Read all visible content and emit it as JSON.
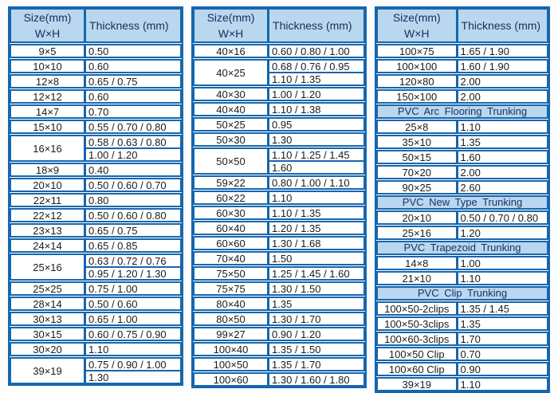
{
  "colors": {
    "border_blue": "#1566af",
    "header_background": "#b9d7ee",
    "header_text": "#1b3060",
    "data_text": "#1b1b1b",
    "row_background": "#ffffff"
  },
  "chart_data": {
    "type": "table",
    "column_headers": {
      "size_line1": "Size(mm)",
      "size_line2": "W×H",
      "thickness": "Thickness (mm)"
    },
    "tables": [
      {
        "name": "pvc-trunking-table-1",
        "rows": [
          {
            "size": "9×5",
            "thickness": [
              "0.50"
            ]
          },
          {
            "size": "10×10",
            "thickness": [
              "0.60"
            ]
          },
          {
            "size": "12×8",
            "thickness": [
              "0.65 / 0.75"
            ]
          },
          {
            "size": "12×12",
            "thickness": [
              "0.60"
            ]
          },
          {
            "size": "14×7",
            "thickness": [
              "0.70"
            ]
          },
          {
            "size": "15×10",
            "thickness": [
              "0.55 / 0.70 / 0.80"
            ]
          },
          {
            "size": "16×16",
            "thickness": [
              "0.58 / 0.63 / 0.80",
              "1.00 / 1.20"
            ]
          },
          {
            "size": "18×9",
            "thickness": [
              "0.40"
            ]
          },
          {
            "size": "20×10",
            "thickness": [
              "0.50 / 0.60 / 0.70"
            ]
          },
          {
            "size": "22×11",
            "thickness": [
              "0.80"
            ]
          },
          {
            "size": "22×12",
            "thickness": [
              "0.50 / 0.60 / 0.80"
            ]
          },
          {
            "size": "23×13",
            "thickness": [
              "0.65 / 0.75"
            ]
          },
          {
            "size": "24×14",
            "thickness": [
              "0.65 / 0.85"
            ]
          },
          {
            "size": "25×16",
            "thickness": [
              "0.63 / 0.72 / 0.76",
              "0.95 / 1.20 / 1.30"
            ]
          },
          {
            "size": "25×25",
            "thickness": [
              "0.75 / 1.00"
            ]
          },
          {
            "size": "28×14",
            "thickness": [
              "0.50 / 0.60"
            ]
          },
          {
            "size": "30×13",
            "thickness": [
              "0.65 / 1.00"
            ]
          },
          {
            "size": "30×15",
            "thickness": [
              "0.60 / 0.75 / 0.90"
            ]
          },
          {
            "size": "30×20",
            "thickness": [
              "1.10"
            ]
          },
          {
            "size": "39×19",
            "thickness": [
              "0.75 / 0.90 / 1.00",
              "1.30"
            ]
          }
        ]
      },
      {
        "name": "pvc-trunking-table-2",
        "rows": [
          {
            "size": "40×16",
            "thickness": [
              "0.60 / 0.80 / 1.00"
            ]
          },
          {
            "size": "40×25",
            "thickness": [
              "0.68 / 0.76 / 0.95",
              "1.10 / 1.35"
            ]
          },
          {
            "size": "40×30",
            "thickness": [
              "1.00 / 1.20"
            ]
          },
          {
            "size": "40×40",
            "thickness": [
              "1.10 / 1.38"
            ]
          },
          {
            "size": "50×25",
            "thickness": [
              "0.95"
            ]
          },
          {
            "size": "50×30",
            "thickness": [
              "1.30"
            ]
          },
          {
            "size": "50×50",
            "thickness": [
              "1.10 / 1.25 / 1.45",
              "1.60"
            ]
          },
          {
            "size": "59×22",
            "thickness": [
              "0.80 / 1.00 / 1.10"
            ]
          },
          {
            "size": "60×22",
            "thickness": [
              "1.10"
            ]
          },
          {
            "size": "60×30",
            "thickness": [
              "1.10 / 1.35"
            ]
          },
          {
            "size": "60×40",
            "thickness": [
              "1.20 / 1.35"
            ]
          },
          {
            "size": "60×60",
            "thickness": [
              "1.30 / 1.68"
            ]
          },
          {
            "size": "70×40",
            "thickness": [
              "1.50"
            ]
          },
          {
            "size": "75×50",
            "thickness": [
              "1.25 / 1.45 / 1.60"
            ]
          },
          {
            "size": "75×75",
            "thickness": [
              "1.30 / 1.50"
            ]
          },
          {
            "size": "80×40",
            "thickness": [
              "1.35"
            ]
          },
          {
            "size": "80×50",
            "thickness": [
              "1.30 / 1.70"
            ]
          },
          {
            "size": "99×27",
            "thickness": [
              "0.90 / 1.20"
            ]
          },
          {
            "size": "100×40",
            "thickness": [
              "1.35 / 1.50"
            ]
          },
          {
            "size": "100×50",
            "thickness": [
              "1.35 / 1.70"
            ]
          },
          {
            "size": "100×60",
            "thickness": [
              "1.30 / 1.60 / 1.80"
            ]
          }
        ]
      },
      {
        "name": "pvc-trunking-table-3",
        "rows": [
          {
            "size": "100×75",
            "thickness": [
              "1.65 / 1.90"
            ]
          },
          {
            "size": "100×100",
            "thickness": [
              "1.60 / 1.90"
            ]
          },
          {
            "size": "120×80",
            "thickness": [
              "2.00"
            ]
          },
          {
            "size": "150×100",
            "thickness": [
              "2.00"
            ]
          },
          {
            "section": "PVC Arc Flooring Trunking"
          },
          {
            "size": "25×8",
            "thickness": [
              "1.10"
            ]
          },
          {
            "size": "35×10",
            "thickness": [
              "1.35"
            ]
          },
          {
            "size": "50×15",
            "thickness": [
              "1.60"
            ]
          },
          {
            "size": "70×20",
            "thickness": [
              "2.00"
            ]
          },
          {
            "size": "90×25",
            "thickness": [
              "2.60"
            ]
          },
          {
            "section": "PVC New Type Trunking"
          },
          {
            "size": "20×10",
            "thickness": [
              "0.50 / 0.70 / 0.80"
            ]
          },
          {
            "size": "25×16",
            "thickness": [
              "1.20"
            ]
          },
          {
            "section": "PVC Trapezoid Trunking"
          },
          {
            "size": "14×8",
            "thickness": [
              "1.00"
            ]
          },
          {
            "size": "21×10",
            "thickness": [
              "1.10"
            ]
          },
          {
            "section": "PVC Clip Trunking"
          },
          {
            "size": "100×50-2clips",
            "thickness": [
              "1.35 / 1.45"
            ]
          },
          {
            "size": "100×50-3clips",
            "thickness": [
              "1.35"
            ]
          },
          {
            "size": "100×60-3clips",
            "thickness": [
              "1.70"
            ]
          },
          {
            "size": "100×50 Clip",
            "thickness": [
              "0.70"
            ]
          },
          {
            "size": "100×60 Clip",
            "thickness": [
              "0.90"
            ]
          },
          {
            "size": "39×19",
            "thickness": [
              "1.10"
            ]
          }
        ]
      }
    ]
  }
}
